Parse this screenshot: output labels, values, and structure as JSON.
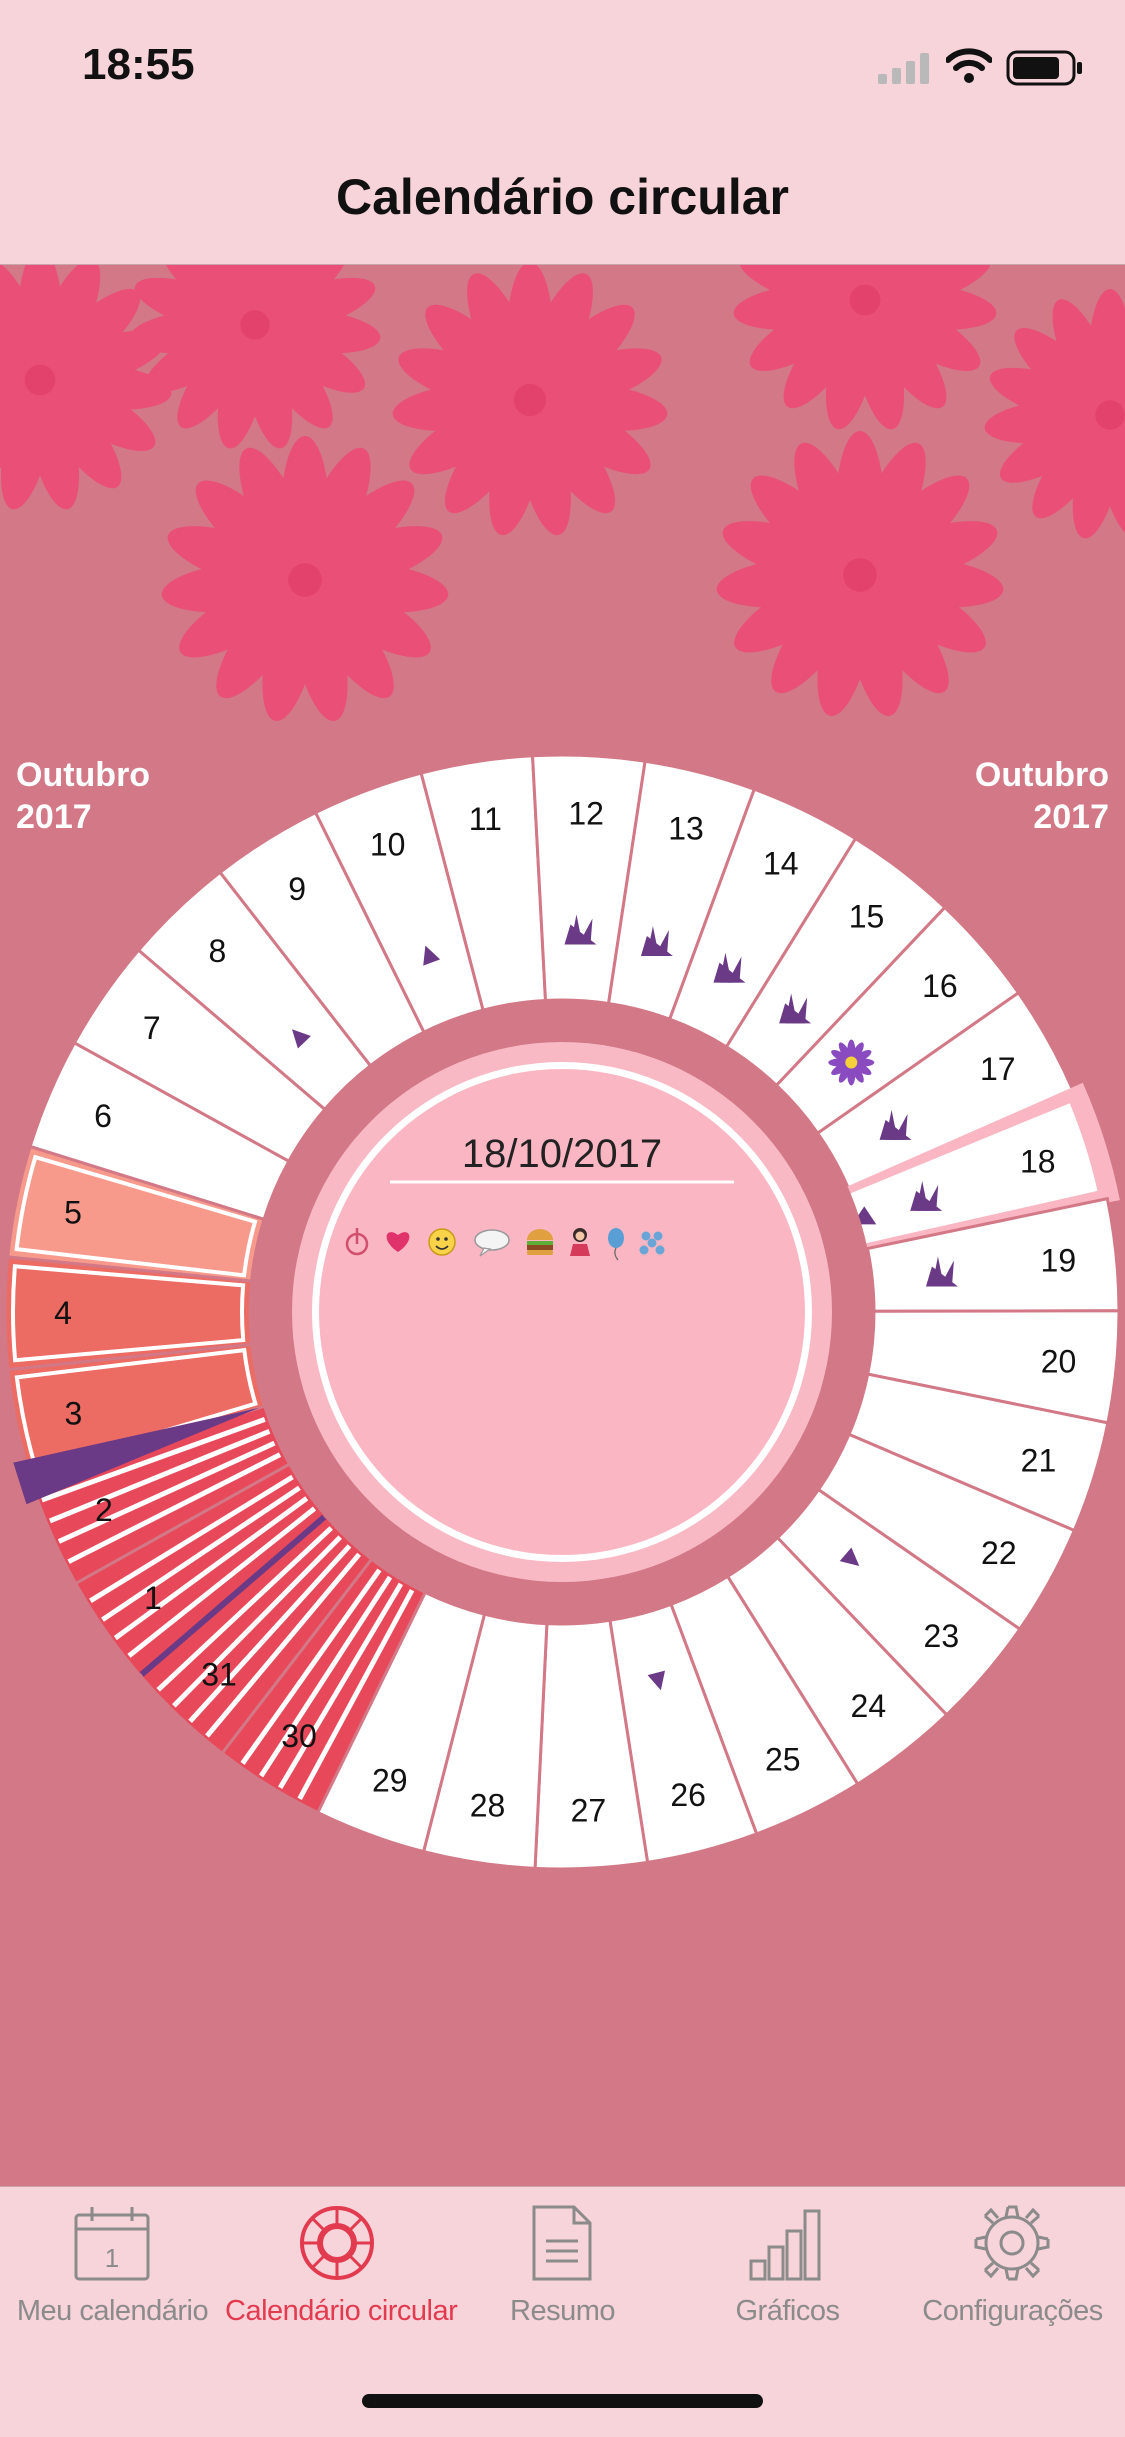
{
  "status": {
    "time": "18:55"
  },
  "nav": {
    "title": "Calendário circular"
  },
  "months": {
    "left": [
      "Outubro",
      "2017"
    ],
    "right": [
      "Outubro",
      "2017"
    ]
  },
  "center": {
    "date": "18/10/2017",
    "icons": [
      "symptom-icon",
      "heart-icon",
      "smiley-icon",
      "speech-bubble-icon",
      "burger-icon",
      "person-icon",
      "balloon-icon",
      "dots-icon"
    ]
  },
  "selected_day": "18",
  "days": [
    {
      "label": "30",
      "type": "period-heavy"
    },
    {
      "label": "31",
      "type": "period-heavy"
    },
    {
      "label": "1",
      "type": "period-heavy"
    },
    {
      "label": "2",
      "type": "period-heavy"
    },
    {
      "label": "3",
      "type": "period-medium"
    },
    {
      "label": "4",
      "type": "period-medium"
    },
    {
      "label": "5",
      "type": "period-light"
    },
    {
      "label": "6",
      "type": "normal"
    },
    {
      "label": "7",
      "type": "normal"
    },
    {
      "label": "8",
      "type": "normal",
      "marker": "triangle"
    },
    {
      "label": "9",
      "type": "normal"
    },
    {
      "label": "10",
      "type": "normal",
      "marker": "triangle"
    },
    {
      "label": "11",
      "type": "normal"
    },
    {
      "label": "12",
      "type": "fertile",
      "marker": "sprout"
    },
    {
      "label": "13",
      "type": "fertile",
      "marker": "sprout"
    },
    {
      "label": "14",
      "type": "fertile",
      "marker": "sprout"
    },
    {
      "label": "15",
      "type": "fertile",
      "marker": "sprout"
    },
    {
      "label": "16",
      "type": "ovulation",
      "marker": "flower"
    },
    {
      "label": "17",
      "type": "fertile",
      "marker": "sprout"
    },
    {
      "label": "18",
      "type": "fertile",
      "marker": "sprout"
    },
    {
      "label": "19",
      "type": "fertile",
      "marker": "sprout"
    },
    {
      "label": "20",
      "type": "normal"
    },
    {
      "label": "21",
      "type": "normal"
    },
    {
      "label": "22",
      "type": "normal"
    },
    {
      "label": "23",
      "type": "normal",
      "marker": "triangle"
    },
    {
      "label": "24",
      "type": "normal"
    },
    {
      "label": "25",
      "type": "normal"
    },
    {
      "label": "26",
      "type": "normal",
      "marker": "triangle"
    },
    {
      "label": "27",
      "type": "normal"
    },
    {
      "label": "28",
      "type": "normal"
    },
    {
      "label": "29",
      "type": "normal"
    }
  ],
  "colors": {
    "background": "#d27886",
    "bar": "#f7d3da",
    "period_heavy": "#e8495a",
    "period_medium": "#ec6b62",
    "period_light": "#f79a8c",
    "accent": "#6b3a86",
    "active_tab": "#e23a4e",
    "inactive_tab": "#8b8b8b"
  },
  "tabs": [
    {
      "label": "Meu calendário",
      "icon": "calendar-icon",
      "active": false
    },
    {
      "label": "Calendário circular",
      "icon": "lifebuoy-icon",
      "active": true
    },
    {
      "label": "Resumo",
      "icon": "document-icon",
      "active": false
    },
    {
      "label": "Gráficos",
      "icon": "bar-chart-icon",
      "active": false
    },
    {
      "label": "Configurações",
      "icon": "gear-icon",
      "active": false
    }
  ]
}
